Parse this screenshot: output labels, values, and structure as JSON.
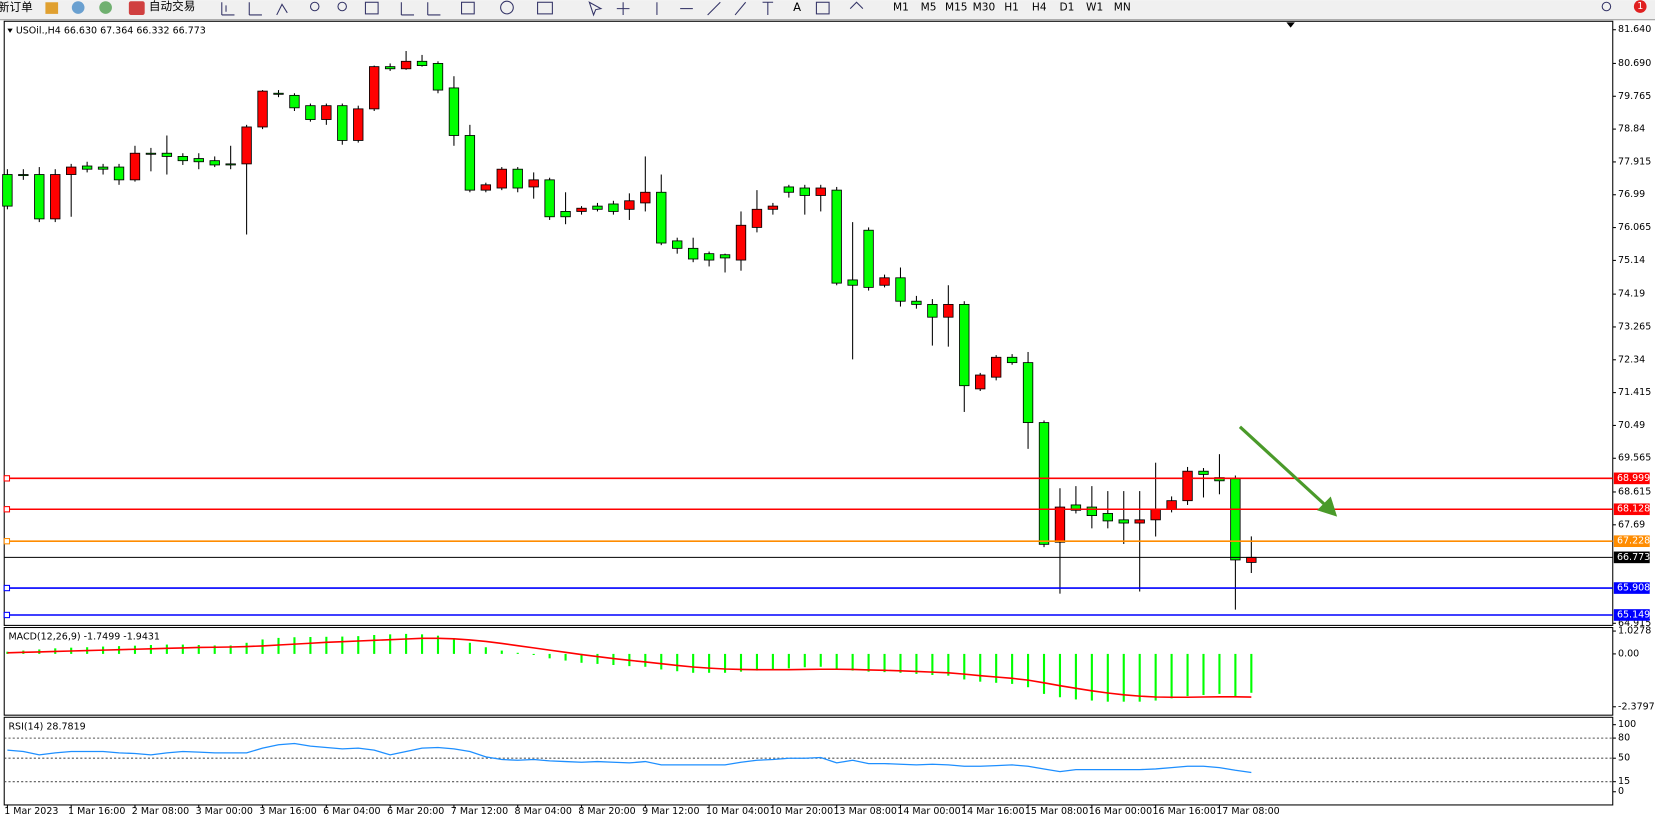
{
  "toolbar": {
    "order": "新订单",
    "auto_trading": "自动交易",
    "text_tool": "A",
    "timeframes": [
      "M1",
      "M5",
      "M15",
      "M30",
      "H1",
      "H4",
      "D1",
      "W1",
      "MN"
    ],
    "badge": "1"
  },
  "chart_data": [
    {
      "type": "candlestick",
      "title": "USOil.,H4  66.630 67.364 66.332 66.773",
      "categories": [
        "1 Mar 2023",
        null,
        null,
        null,
        "1 Mar 16:00",
        null,
        null,
        null,
        "2 Mar 08:00",
        null,
        null,
        null,
        "3 Mar 00:00",
        null,
        null,
        null,
        "3 Mar 16:00",
        null,
        null,
        null,
        "6 Mar 04:00",
        null,
        null,
        null,
        "6 Mar 20:00",
        null,
        null,
        null,
        "7 Mar 12:00",
        null,
        null,
        null,
        "8 Mar 04:00",
        null,
        null,
        null,
        "8 Mar 20:00",
        null,
        null,
        null,
        "9 Mar 12:00",
        null,
        null,
        null,
        "10 Mar 04:00",
        null,
        null,
        null,
        "10 Mar 20:00",
        null,
        null,
        null,
        "13 Mar 08:00",
        null,
        null,
        null,
        "14 Mar 00:00",
        null,
        null,
        null,
        "14 Mar 16:00",
        null,
        null,
        null,
        "15 Mar 08:00",
        null,
        null,
        null,
        "16 Mar 00:00",
        null,
        null,
        null,
        "16 Mar 16:00",
        null,
        null,
        null,
        "17 Mar 08:00",
        null,
        null
      ],
      "open": [
        77.56,
        77.56,
        77.56,
        76.31,
        77.56,
        77.8,
        77.77,
        77.77,
        77.41,
        78.16,
        78.16,
        78.07,
        78.01,
        77.95,
        77.86,
        77.86,
        78.9,
        79.85,
        79.79,
        79.5,
        79.11,
        79.5,
        78.52,
        79.41,
        80.6,
        80.54,
        80.75,
        80.69,
        80.0,
        78.66,
        77.12,
        77.18,
        77.71,
        77.21,
        77.41,
        76.52,
        76.52,
        76.67,
        76.73,
        76.58,
        76.76,
        77.06,
        75.69,
        75.48,
        75.33,
        75.3,
        75.15,
        76.07,
        76.58,
        77.21,
        77.18,
        76.97,
        77.12,
        74.59,
        75.99,
        74.44,
        74.65,
        73.99,
        73.9,
        73.54,
        73.9,
        71.52,
        71.85,
        72.41,
        72.26,
        70.57,
        67.2,
        68.25,
        68.19,
        68.01,
        67.83,
        67.74,
        67.83,
        68.13,
        68.37,
        69.2,
        69.02,
        68.99,
        66.63
      ],
      "high": [
        77.71,
        77.71,
        77.77,
        77.71,
        77.86,
        77.92,
        77.86,
        77.86,
        78.37,
        78.31,
        78.66,
        78.16,
        78.16,
        78.07,
        78.37,
        78.96,
        79.94,
        79.94,
        79.85,
        79.56,
        79.56,
        79.56,
        79.5,
        80.63,
        80.69,
        81.04,
        80.93,
        80.75,
        80.33,
        78.96,
        77.33,
        77.77,
        77.77,
        77.62,
        77.47,
        77.06,
        76.67,
        76.76,
        76.82,
        77.03,
        78.07,
        77.56,
        75.78,
        75.78,
        75.39,
        75.33,
        76.52,
        77.12,
        76.76,
        77.27,
        77.27,
        77.27,
        77.21,
        76.22,
        76.07,
        74.74,
        74.94,
        74.14,
        74.05,
        74.44,
        73.99,
        71.97,
        72.47,
        72.5,
        72.56,
        70.63,
        68.72,
        68.78,
        68.78,
        68.64,
        68.64,
        68.64,
        69.44,
        68.49,
        69.32,
        69.29,
        69.68,
        69.08,
        67.364
      ],
      "low": [
        76.58,
        77.41,
        76.22,
        76.22,
        76.37,
        77.62,
        77.56,
        77.27,
        77.36,
        77.65,
        77.56,
        77.83,
        77.71,
        77.77,
        77.71,
        75.87,
        78.84,
        79.74,
        79.35,
        79.05,
        78.96,
        78.4,
        78.46,
        79.35,
        80.48,
        80.51,
        80.6,
        79.85,
        78.37,
        77.06,
        77.06,
        77.12,
        77.06,
        76.88,
        76.28,
        76.16,
        76.43,
        76.52,
        76.43,
        76.28,
        76.52,
        75.57,
        75.33,
        75.09,
        74.97,
        74.8,
        74.85,
        75.93,
        76.43,
        76.91,
        76.43,
        76.52,
        74.44,
        72.35,
        74.29,
        74.38,
        73.84,
        73.78,
        72.74,
        72.71,
        70.87,
        71.46,
        71.76,
        72.2,
        69.83,
        67.06,
        65.75,
        68.01,
        67.59,
        67.59,
        67.15,
        65.81,
        67.36,
        68.04,
        68.25,
        68.46,
        68.55,
        65.3,
        66.332
      ],
      "close": [
        76.67,
        77.53,
        76.31,
        77.56,
        77.77,
        77.71,
        77.71,
        77.41,
        78.16,
        78.13,
        78.07,
        77.95,
        77.92,
        77.83,
        77.83,
        78.9,
        79.91,
        79.82,
        79.44,
        79.11,
        79.5,
        78.52,
        79.41,
        80.6,
        80.54,
        80.75,
        80.63,
        79.94,
        78.66,
        77.12,
        77.27,
        77.71,
        77.18,
        77.41,
        76.37,
        76.37,
        76.61,
        76.58,
        76.52,
        76.82,
        77.06,
        75.63,
        75.48,
        75.18,
        75.15,
        75.21,
        76.13,
        76.58,
        76.67,
        77.06,
        76.97,
        77.18,
        74.5,
        74.44,
        74.38,
        74.65,
        73.99,
        73.9,
        73.54,
        73.9,
        71.61,
        71.91,
        72.41,
        72.26,
        70.57,
        67.14,
        68.19,
        68.1,
        67.95,
        67.8,
        67.74,
        67.83,
        68.13,
        68.37,
        69.2,
        69.11,
        68.93,
        66.7,
        66.773
      ],
      "up_color": "#ff0000",
      "down_color": "#00ff00",
      "ylim": [
        64.915,
        81.64
      ],
      "yticks": [
        {
          "value": 81.64,
          "label": "81.640"
        },
        {
          "value": 80.69,
          "label": "80.690"
        },
        79.765,
        78.84,
        77.915,
        76.99,
        76.065,
        75.14,
        74.19,
        73.265,
        72.34,
        71.415,
        70.49,
        69.565,
        68.615,
        67.69,
        64.915
      ],
      "levels": [
        {
          "value": 68.999,
          "color": "#ff0000"
        },
        {
          "value": 68.128,
          "color": "#ff0000"
        },
        {
          "value": 67.228,
          "color": "#ff8c00"
        },
        {
          "value": 66.773,
          "color": "#000000"
        },
        {
          "value": 65.908,
          "color": "#0000ff"
        },
        {
          "value": 65.149,
          "color": "#0000ff"
        }
      ]
    },
    {
      "type": "macd",
      "title": "MACD(12,26,9) -1.7499 -1.9431",
      "series": [
        {
          "style": "histogram",
          "color": "#00ff00",
          "values": [
            0.1,
            0.15,
            0.2,
            0.25,
            0.28,
            0.3,
            0.33,
            0.35,
            0.37,
            0.4,
            0.42,
            0.42,
            0.4,
            0.38,
            0.38,
            0.5,
            0.65,
            0.72,
            0.75,
            0.76,
            0.77,
            0.78,
            0.8,
            0.85,
            0.88,
            0.9,
            0.88,
            0.82,
            0.7,
            0.5,
            0.3,
            0.15,
            0.05,
            -0.05,
            -0.2,
            -0.3,
            -0.4,
            -0.45,
            -0.5,
            -0.55,
            -0.58,
            -0.7,
            -0.78,
            -0.85,
            -0.85,
            -0.85,
            -0.8,
            -0.75,
            -0.7,
            -0.65,
            -0.6,
            -0.58,
            -0.7,
            -0.75,
            -0.8,
            -0.82,
            -0.85,
            -0.9,
            -0.95,
            -0.98,
            -1.15,
            -1.25,
            -1.3,
            -1.35,
            -1.5,
            -1.8,
            -1.95,
            -2.05,
            -2.1,
            -2.15,
            -2.15,
            -2.15,
            -2.1,
            -2.0,
            -1.9,
            -1.85,
            -1.8,
            -1.9,
            -1.7499
          ]
        },
        {
          "style": "line",
          "color": "#ff0000",
          "values": [
            0.05,
            0.07,
            0.09,
            0.11,
            0.13,
            0.15,
            0.17,
            0.19,
            0.21,
            0.23,
            0.25,
            0.27,
            0.29,
            0.3,
            0.31,
            0.33,
            0.36,
            0.4,
            0.44,
            0.48,
            0.52,
            0.55,
            0.58,
            0.61,
            0.64,
            0.67,
            0.7,
            0.7,
            0.68,
            0.63,
            0.56,
            0.47,
            0.37,
            0.27,
            0.17,
            0.07,
            -0.03,
            -0.12,
            -0.21,
            -0.29,
            -0.36,
            -0.44,
            -0.52,
            -0.59,
            -0.64,
            -0.68,
            -0.7,
            -0.71,
            -0.71,
            -0.71,
            -0.7,
            -0.69,
            -0.69,
            -0.7,
            -0.72,
            -0.74,
            -0.76,
            -0.79,
            -0.82,
            -0.85,
            -0.91,
            -0.98,
            -1.04,
            -1.1,
            -1.18,
            -1.3,
            -1.43,
            -1.55,
            -1.66,
            -1.76,
            -1.84,
            -1.9,
            -1.94,
            -1.95,
            -1.95,
            -1.94,
            -1.93,
            -1.93,
            -1.9431
          ]
        }
      ],
      "ylim": [
        -2.71,
        1.14
      ],
      "yticks": [
        1.0278,
        {
          "value": 0,
          "label": "0.00"
        },
        -2.3797
      ]
    },
    {
      "type": "line",
      "title": "RSI(14) 28.7819",
      "color": "#1e8fff",
      "values": [
        62,
        60,
        55,
        58,
        60,
        60,
        60,
        58,
        57,
        55,
        58,
        60,
        59,
        58,
        58,
        58,
        65,
        70,
        72,
        68,
        66,
        64,
        65,
        62,
        55,
        60,
        65,
        66,
        64,
        60,
        52,
        48,
        47,
        48,
        46,
        45,
        44,
        45,
        44,
        43,
        45,
        40,
        40,
        40,
        40,
        40,
        44,
        47,
        48,
        50,
        50,
        51,
        43,
        47,
        42,
        42,
        41,
        40,
        41,
        40,
        38,
        38,
        39,
        40,
        38,
        34,
        30,
        33,
        33,
        33,
        33,
        33,
        34,
        36,
        38,
        38,
        36,
        32,
        28.7819
      ],
      "ylim": [
        0,
        100
      ],
      "yticks": [
        100,
        80,
        50,
        15,
        0
      ],
      "levels": [
        80,
        50,
        15
      ]
    }
  ]
}
